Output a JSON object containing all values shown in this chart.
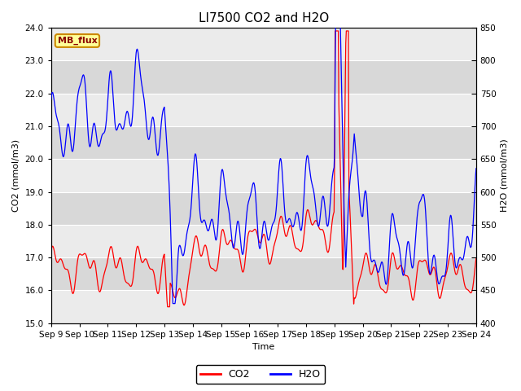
{
  "title": "LI7500 CO2 and H2O",
  "xlabel": "Time",
  "ylabel_left": "CO2 (mmol/m3)",
  "ylabel_right": "H2O (mmol/m3)",
  "ylim_left": [
    15.0,
    24.0
  ],
  "ylim_right": [
    400,
    850
  ],
  "yticks_left": [
    15.0,
    16.0,
    17.0,
    18.0,
    19.0,
    20.0,
    21.0,
    22.0,
    23.0,
    24.0
  ],
  "yticks_right": [
    400,
    450,
    500,
    550,
    600,
    650,
    700,
    750,
    800,
    850
  ],
  "xtick_labels": [
    "Sep 9",
    "Sep 10",
    "Sep 11",
    "Sep 12",
    "Sep 13",
    "Sep 14",
    "Sep 15",
    "Sep 16",
    "Sep 17",
    "Sep 18",
    "Sep 19",
    "Sep 20",
    "Sep 21",
    "Sep 22",
    "Sep 23",
    "Sep 24"
  ],
  "color_co2": "#FF0000",
  "color_h2o": "#0000FF",
  "bg_color_dark": "#D8D8D8",
  "bg_color_light": "#EBEBEB",
  "annotation_text": "MB_flux",
  "annotation_bg": "#FFFF99",
  "annotation_border": "#CC8800",
  "legend_co2": "CO2",
  "legend_h2o": "H2O",
  "title_fontsize": 11,
  "axis_fontsize": 8,
  "tick_fontsize": 7.5,
  "legend_fontsize": 9
}
